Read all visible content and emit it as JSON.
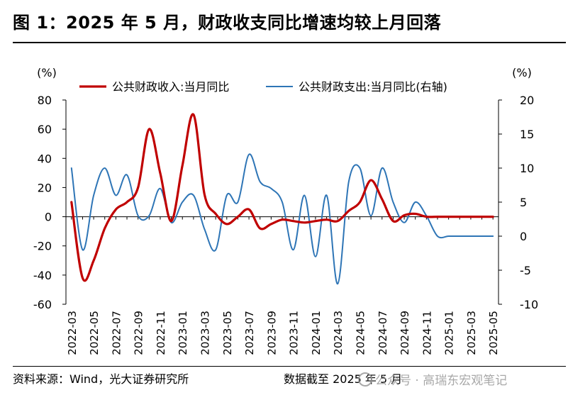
{
  "figure": {
    "title": "图 1：2025 年 5 月，财政收支同比增速均较上月回落",
    "source": "资料来源：Wind，光大证券研究所",
    "cutoff": "数据截至 2025 年 5 月",
    "watermark": "公众号 · 高瑞东宏观笔记"
  },
  "chart_data": {
    "type": "line",
    "y_unit_left": "(%)",
    "y_unit_right": "(%)",
    "ylim_left": [
      -60,
      80
    ],
    "yticks_left": [
      -60,
      -40,
      -20,
      0,
      20,
      40,
      60,
      80
    ],
    "ylim_right": [
      -10,
      20
    ],
    "yticks_right": [
      -10,
      -5,
      0,
      5,
      10,
      15,
      20
    ],
    "x": [
      "2022-03",
      "2022-04",
      "2022-05",
      "2022-06",
      "2022-07",
      "2022-08",
      "2022-09",
      "2022-10",
      "2022-11",
      "2022-12",
      "2023-01",
      "2023-02",
      "2023-03",
      "2023-04",
      "2023-05",
      "2023-06",
      "2023-07",
      "2023-08",
      "2023-09",
      "2023-10",
      "2023-11",
      "2023-12",
      "2024-01",
      "2024-02",
      "2024-03",
      "2024-04",
      "2024-05",
      "2024-06",
      "2024-07",
      "2024-08",
      "2024-09",
      "2024-10",
      "2024-11",
      "2024-12",
      "2025-01",
      "2025-02",
      "2025-03",
      "2025-04",
      "2025-05"
    ],
    "x_tick_labels": [
      "2022-03",
      "2022-05",
      "2022-07",
      "2022-09",
      "2022-11",
      "2023-01",
      "2023-03",
      "2023-05",
      "2023-07",
      "2023-09",
      "2023-11",
      "2024-01",
      "2024-03",
      "2024-05",
      "2024-07",
      "2024-09",
      "2024-11",
      "2025-01",
      "2025-03",
      "2025-05"
    ],
    "grid": false,
    "legend_position": "top",
    "series": [
      {
        "name": "公共财政收入:当月同比",
        "axis": "left",
        "color": "#c00000",
        "values": [
          10,
          -42,
          -30,
          -8,
          5,
          10,
          20,
          60,
          30,
          -3,
          35,
          70,
          15,
          2,
          -5,
          0,
          5,
          -8,
          -5,
          -2,
          -3,
          -4,
          -3,
          -2,
          -3,
          4,
          10,
          25,
          12,
          -3,
          1,
          2,
          0,
          0,
          0,
          0,
          0,
          0,
          0
        ]
      },
      {
        "name": "公共财政支出:当月同比(右轴)",
        "axis": "right",
        "color": "#2e75b6",
        "values": [
          10,
          -2,
          6,
          10,
          6,
          9,
          3,
          3,
          7,
          2,
          5,
          6,
          1,
          -2,
          6,
          5,
          12,
          8,
          7,
          5,
          -2,
          6,
          -3,
          6,
          -7,
          8,
          10,
          3,
          10,
          5,
          2,
          5,
          3,
          0,
          0,
          0,
          0,
          0,
          0
        ]
      }
    ]
  }
}
